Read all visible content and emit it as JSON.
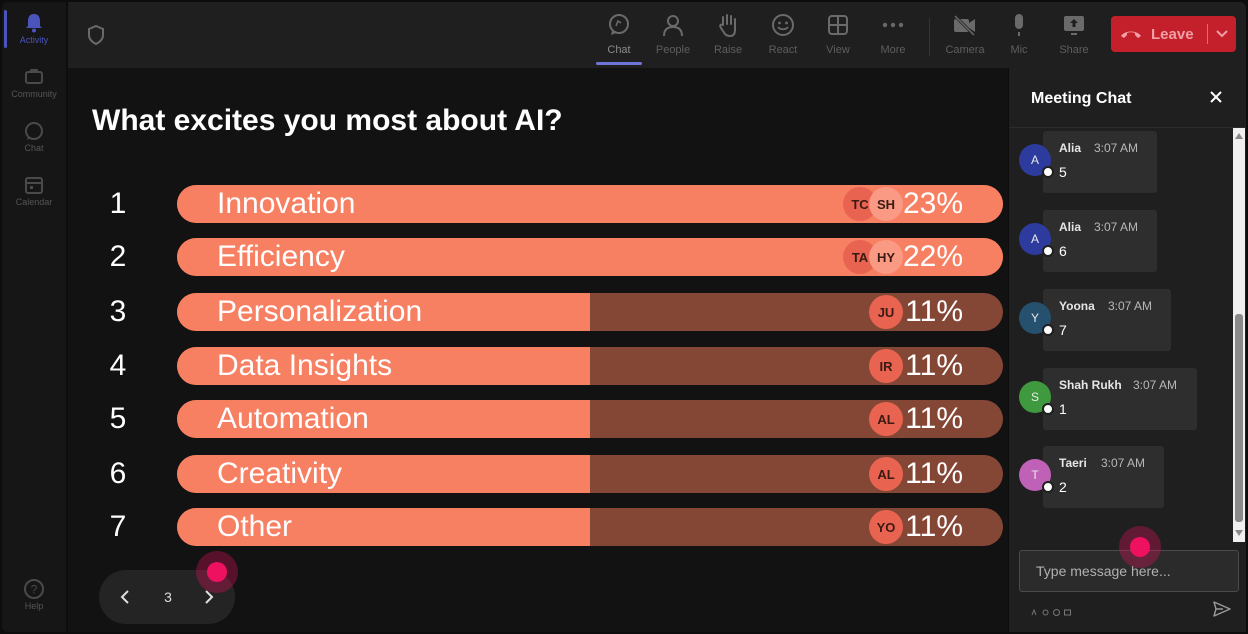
{
  "rail": {
    "items": [
      {
        "label": "Activity",
        "icon": "bell-icon",
        "active": true
      },
      {
        "label": "Community",
        "icon": "community-icon",
        "active": false
      },
      {
        "label": "Chat",
        "icon": "chat-icon",
        "active": false
      },
      {
        "label": "Calendar",
        "icon": "calendar-icon",
        "active": false
      }
    ],
    "help_label": "Help"
  },
  "toolbar": {
    "buttons": [
      {
        "label": "Chat",
        "icon": "chat-icon",
        "active": true
      },
      {
        "label": "People",
        "icon": "people-icon",
        "active": false
      },
      {
        "label": "Raise",
        "icon": "raise-hand-icon",
        "active": false
      },
      {
        "label": "React",
        "icon": "smiley-icon",
        "active": false
      },
      {
        "label": "View",
        "icon": "grid-view-icon",
        "active": false
      },
      {
        "label": "More",
        "icon": "more-icon",
        "active": false
      },
      {
        "label": "Camera",
        "icon": "camera-off-icon",
        "active": false
      },
      {
        "label": "Mic",
        "icon": "mic-icon",
        "active": false
      },
      {
        "label": "Share",
        "icon": "share-icon",
        "active": false
      }
    ],
    "leave_label": "Leave",
    "leave_color": "#c4202c"
  },
  "poll": {
    "title": "What excites you most about AI?",
    "options": [
      {
        "number": "1",
        "label": "Innovation",
        "percent_text": "23%",
        "fill": 1.0,
        "avatars": [
          "TC",
          "SH"
        ]
      },
      {
        "number": "2",
        "label": "Efficiency",
        "percent_text": "22%",
        "fill": 1.0,
        "avatars": [
          "TA",
          "HY"
        ]
      },
      {
        "number": "3",
        "label": "Personalization",
        "percent_text": "11%",
        "fill": 0.5,
        "avatars": [
          "JU"
        ]
      },
      {
        "number": "4",
        "label": "Data Insights",
        "percent_text": "11%",
        "fill": 0.5,
        "avatars": [
          "IR"
        ]
      },
      {
        "number": "5",
        "label": "Automation",
        "percent_text": "11%",
        "fill": 0.5,
        "avatars": [
          "AL"
        ]
      },
      {
        "number": "6",
        "label": "Creativity",
        "percent_text": "11%",
        "fill": 0.5,
        "avatars": [
          "AL"
        ]
      },
      {
        "number": "7",
        "label": "Other",
        "percent_text": "11%",
        "fill": 0.5,
        "avatars": [
          "YO"
        ]
      }
    ],
    "bar_fill_color": "#f77f62",
    "bar_track_color": "#844736",
    "page": "3"
  },
  "chat": {
    "title": "Meeting Chat",
    "messages": [
      {
        "initial": "A",
        "name": "Alia",
        "time": "3:07 AM",
        "text": "5",
        "avatar_color": "#2d3b9e"
      },
      {
        "initial": "A",
        "name": "Alia",
        "time": "3:07 AM",
        "text": "6",
        "avatar_color": "#2d3b9e"
      },
      {
        "initial": "Y",
        "name": "Yoona",
        "time": "3:07 AM",
        "text": "7",
        "avatar_color": "#25506e"
      },
      {
        "initial": "S",
        "name": "Shah Rukh",
        "time": "3:07 AM",
        "text": "1",
        "avatar_color": "#3f9a3f"
      },
      {
        "initial": "T",
        "name": "Taeri",
        "time": "3:07 AM",
        "text": "2",
        "avatar_color": "#c061b8"
      }
    ],
    "input_placeholder": "Type message here..."
  }
}
